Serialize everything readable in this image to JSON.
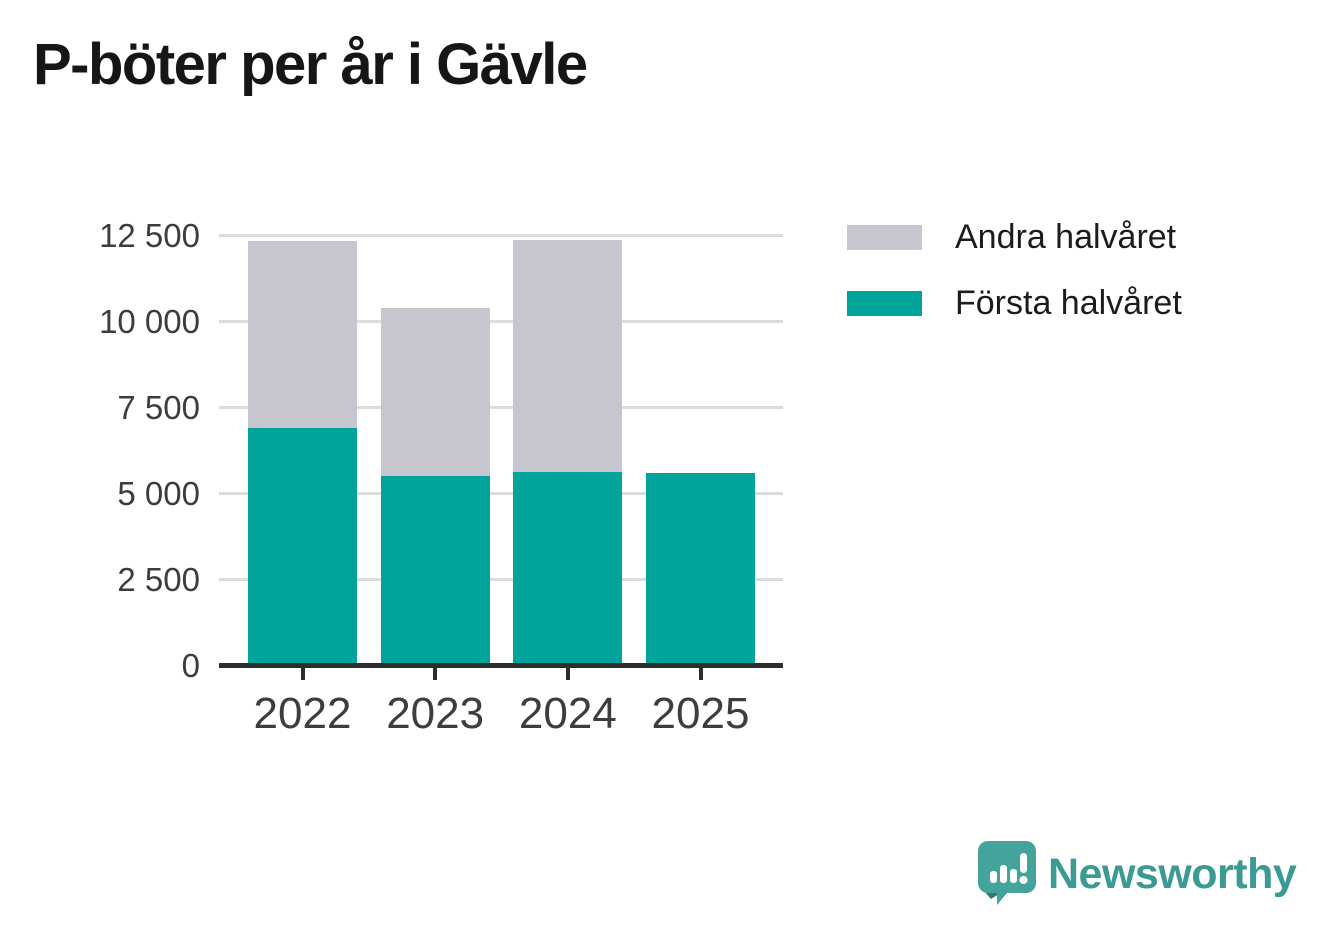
{
  "title": "P-böter per år i Gävle",
  "chart_data": {
    "type": "bar",
    "stacked": true,
    "title": "P-böter per år i Gävle",
    "categories": [
      "2022",
      "2023",
      "2024",
      "2025"
    ],
    "series": [
      {
        "name": "Första halvåret",
        "color": "#00a49a",
        "values": [
          6900,
          5510,
          5620,
          5600
        ]
      },
      {
        "name": "Andra halvåret",
        "color": "#c7c5ce",
        "values": [
          5450,
          4890,
          6760,
          0
        ]
      }
    ],
    "totals": [
      12350,
      10400,
      12380,
      5600
    ],
    "xlabel": "",
    "ylabel": "",
    "ylim": [
      0,
      12500
    ],
    "yticks": [
      0,
      2500,
      5000,
      7500,
      10000,
      12500
    ],
    "ytick_labels": [
      "0",
      "2 500",
      "5 000",
      "7 500",
      "10 000",
      "12 500"
    ],
    "grid": true,
    "legend_position": "top-right"
  },
  "legend": {
    "items": [
      {
        "label": "Andra halvåret",
        "color": "#c7c5ce"
      },
      {
        "label": "Första halvåret",
        "color": "#00a49a"
      }
    ]
  },
  "branding": {
    "logo_text": "Newsworthy",
    "logo_color": "#3b9a92",
    "logo_icon": "speech-bubble-bar-chart-icon"
  }
}
